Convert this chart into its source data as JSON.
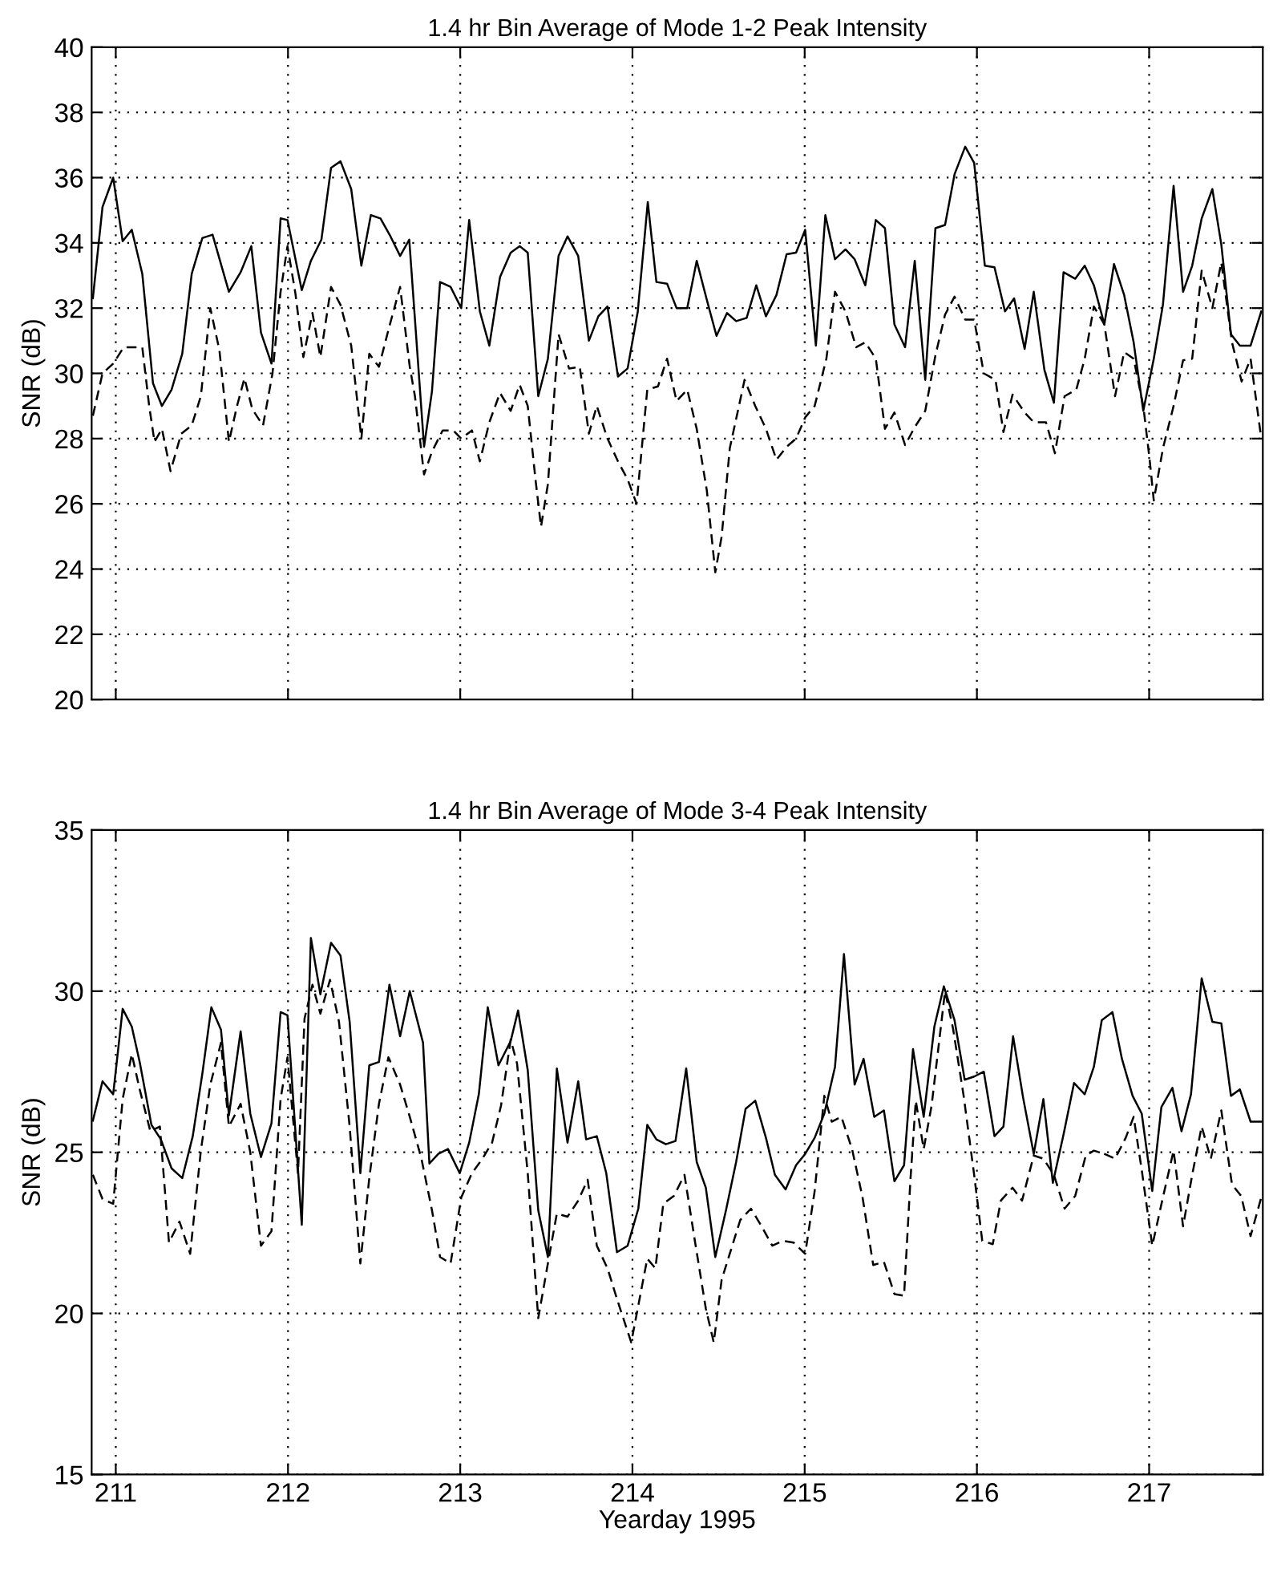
{
  "chart_data": [
    {
      "type": "line",
      "title": "1.4 hr Bin Average of Mode 1-2 Peak Intensity",
      "ylabel": "SNR (dB)",
      "xlim": [
        210.86,
        217.66
      ],
      "xticks": [
        211,
        212,
        213,
        214,
        215,
        216,
        217
      ],
      "ylim": [
        20,
        40
      ],
      "yticks": [
        20,
        22,
        24,
        26,
        28,
        30,
        32,
        34,
        36,
        38,
        40
      ],
      "grid": true,
      "tick_labels": "y",
      "marker": "none",
      "series": [
        {
          "color": "#000000",
          "line_style": "solid",
          "x": [
            210.867,
            210.923,
            210.985,
            211.04,
            211.093,
            211.154,
            211.216,
            211.268,
            211.324,
            211.386,
            211.441,
            211.503,
            211.562,
            211.657,
            211.725,
            211.787,
            211.843,
            211.904,
            211.957,
            211.997,
            212.08,
            212.133,
            212.194,
            212.25,
            212.305,
            212.367,
            212.426,
            212.481,
            212.537,
            212.595,
            212.651,
            212.704,
            212.79,
            212.836,
            212.883,
            212.944,
            213.006,
            213.052,
            213.114,
            213.169,
            213.231,
            213.293,
            213.345,
            213.392,
            213.453,
            213.509,
            213.571,
            213.623,
            213.685,
            213.747,
            213.802,
            213.855,
            213.916,
            213.972,
            214.031,
            214.089,
            214.139,
            214.201,
            214.256,
            214.318,
            214.373,
            214.432,
            214.488,
            214.549,
            214.602,
            214.663,
            214.719,
            214.775,
            214.836,
            214.895,
            214.95,
            215.003,
            215.065,
            215.12,
            215.176,
            215.237,
            215.29,
            215.352,
            215.413,
            215.466,
            215.521,
            215.583,
            215.639,
            215.7,
            215.759,
            215.815,
            215.87,
            215.932,
            215.984,
            216.046,
            216.102,
            216.163,
            216.216,
            216.277,
            216.33,
            216.392,
            216.447,
            216.503,
            216.571,
            216.626,
            216.679,
            216.74,
            216.796,
            216.855,
            216.91,
            216.966,
            217.027,
            217.08,
            217.142,
            217.197,
            217.25,
            217.305,
            217.367,
            217.419,
            217.475,
            217.527,
            217.589,
            217.651
          ],
          "values": [
            32.3,
            35.1,
            36.0,
            34.05,
            34.4,
            33.05,
            29.7,
            29.0,
            29.5,
            30.6,
            33.05,
            34.15,
            34.25,
            32.5,
            33.1,
            33.9,
            31.25,
            30.3,
            34.75,
            34.7,
            32.55,
            33.45,
            34.1,
            36.3,
            36.5,
            35.65,
            33.3,
            34.85,
            34.75,
            34.2,
            33.6,
            34.1,
            27.75,
            29.45,
            32.8,
            32.65,
            32.0,
            34.7,
            31.9,
            30.85,
            32.95,
            33.7,
            33.9,
            33.7,
            29.3,
            30.45,
            33.6,
            34.2,
            33.6,
            31.0,
            31.75,
            32.05,
            29.9,
            30.15,
            31.9,
            35.25,
            32.8,
            32.75,
            32.0,
            32.0,
            33.45,
            32.25,
            31.15,
            31.85,
            31.6,
            31.7,
            32.7,
            31.75,
            32.4,
            33.65,
            33.7,
            34.4,
            30.85,
            34.85,
            33.5,
            33.8,
            33.5,
            32.7,
            34.7,
            34.45,
            31.5,
            30.8,
            33.45,
            29.8,
            34.45,
            34.55,
            36.1,
            36.95,
            36.45,
            33.3,
            33.25,
            31.9,
            32.3,
            30.75,
            32.5,
            30.1,
            29.1,
            33.1,
            32.9,
            33.3,
            32.7,
            31.5,
            33.35,
            32.4,
            30.95,
            28.85,
            30.45,
            32.1,
            35.75,
            32.5,
            33.3,
            34.75,
            35.65,
            33.95,
            31.2,
            30.85,
            30.85,
            31.9
          ]
        },
        {
          "color": "#000000",
          "line_style": "dashed",
          "x": [
            210.867,
            210.923,
            210.985,
            211.046,
            211.108,
            211.154,
            211.194,
            211.225,
            211.268,
            211.318,
            211.38,
            211.441,
            211.494,
            211.549,
            211.602,
            211.657,
            211.704,
            211.747,
            211.793,
            211.855,
            211.91,
            211.957,
            211.997,
            212.043,
            212.089,
            212.142,
            212.188,
            212.25,
            212.305,
            212.367,
            212.426,
            212.472,
            212.528,
            212.589,
            212.651,
            212.707,
            212.737,
            212.79,
            212.836,
            212.898,
            212.96,
            213.006,
            213.068,
            213.114,
            213.169,
            213.231,
            213.293,
            213.345,
            213.392,
            213.438,
            213.469,
            213.509,
            213.571,
            213.632,
            213.694,
            213.747,
            213.793,
            213.855,
            213.916,
            213.972,
            214.024,
            214.086,
            214.148,
            214.201,
            214.256,
            214.318,
            214.373,
            214.432,
            214.481,
            214.518,
            214.565,
            214.651,
            214.713,
            214.775,
            214.836,
            214.895,
            214.95,
            215.003,
            215.058,
            215.126,
            215.176,
            215.237,
            215.299,
            215.352,
            215.413,
            215.466,
            215.521,
            215.583,
            215.639,
            215.7,
            215.759,
            215.815,
            215.87,
            215.932,
            215.984,
            216.04,
            216.108,
            216.154,
            216.207,
            216.277,
            216.33,
            216.401,
            216.453,
            216.509,
            216.577,
            216.626,
            216.679,
            216.74,
            216.802,
            216.855,
            216.91,
            216.966,
            217.003,
            217.027,
            217.08,
            217.142,
            217.197,
            217.25,
            217.305,
            217.367,
            217.419,
            217.481,
            217.537,
            217.589,
            217.651
          ],
          "values": [
            28.7,
            30.0,
            30.3,
            30.8,
            30.8,
            30.8,
            29.0,
            27.9,
            28.3,
            27.0,
            28.15,
            28.4,
            29.3,
            32.0,
            30.7,
            27.9,
            29.0,
            29.85,
            28.9,
            28.4,
            30.0,
            32.5,
            33.9,
            32.45,
            30.5,
            31.85,
            30.5,
            32.65,
            32.1,
            30.85,
            28.0,
            30.6,
            30.2,
            31.45,
            32.65,
            30.2,
            29.3,
            26.9,
            27.6,
            28.25,
            28.25,
            28.0,
            28.25,
            27.3,
            28.5,
            29.4,
            28.85,
            29.65,
            29.0,
            26.7,
            25.3,
            26.6,
            31.2,
            30.15,
            30.2,
            28.15,
            29.0,
            28.0,
            27.3,
            26.75,
            26.0,
            29.5,
            29.6,
            30.45,
            29.15,
            29.5,
            28.3,
            26.4,
            23.9,
            25.0,
            27.7,
            29.8,
            29.0,
            28.3,
            27.35,
            27.75,
            28.0,
            28.65,
            29.0,
            30.45,
            32.5,
            31.9,
            30.8,
            30.95,
            30.45,
            28.3,
            28.8,
            27.8,
            28.35,
            28.85,
            30.55,
            31.8,
            32.35,
            31.65,
            31.65,
            30.0,
            29.8,
            28.2,
            29.35,
            28.8,
            28.5,
            28.5,
            27.55,
            29.3,
            29.5,
            30.45,
            32.05,
            31.5,
            29.3,
            30.65,
            30.45,
            29.0,
            27.35,
            26.1,
            27.7,
            29.0,
            30.4,
            30.45,
            33.15,
            32.0,
            33.4,
            30.95,
            29.75,
            30.45,
            28.0
          ]
        }
      ]
    },
    {
      "type": "line",
      "title": "1.4 hr Bin Average of Mode 3-4 Peak Intensity",
      "xlabel": "Yearday 1995",
      "ylabel": "SNR (dB)",
      "xlim": [
        210.86,
        217.66
      ],
      "xticks": [
        211,
        212,
        213,
        214,
        215,
        216,
        217
      ],
      "ylim": [
        15,
        35
      ],
      "yticks": [
        15,
        20,
        25,
        30,
        35
      ],
      "grid": true,
      "marker": "none",
      "series": [
        {
          "color": "#000000",
          "line_style": "solid",
          "x": [
            210.867,
            210.923,
            210.985,
            211.04,
            211.093,
            211.139,
            211.207,
            211.262,
            211.324,
            211.386,
            211.447,
            211.503,
            211.555,
            211.611,
            211.657,
            211.725,
            211.781,
            211.843,
            211.904,
            211.957,
            211.997,
            212.08,
            212.133,
            212.188,
            212.25,
            212.305,
            212.358,
            212.42,
            212.472,
            212.528,
            212.589,
            212.651,
            212.707,
            212.784,
            212.821,
            212.873,
            212.929,
            212.997,
            213.052,
            213.108,
            213.16,
            213.222,
            213.293,
            213.336,
            213.392,
            213.453,
            213.509,
            213.561,
            213.623,
            213.685,
            213.731,
            213.793,
            213.848,
            213.91,
            213.972,
            214.034,
            214.086,
            214.139,
            214.194,
            214.25,
            214.312,
            214.373,
            214.426,
            214.481,
            214.543,
            214.602,
            214.657,
            214.713,
            214.775,
            214.827,
            214.889,
            214.95,
            215.003,
            215.058,
            215.114,
            215.176,
            215.228,
            215.29,
            215.342,
            215.404,
            215.46,
            215.521,
            215.577,
            215.629,
            215.691,
            215.753,
            215.808,
            215.87,
            215.929,
            215.984,
            216.04,
            216.102,
            216.154,
            216.21,
            216.268,
            216.33,
            216.386,
            216.441,
            216.503,
            216.564,
            216.626,
            216.679,
            216.725,
            216.787,
            216.842,
            216.904,
            216.957,
            217.018,
            217.071,
            217.135,
            217.188,
            217.243,
            217.305,
            217.367,
            217.419,
            217.475,
            217.527,
            217.589,
            217.651
          ],
          "values": [
            25.98,
            27.2,
            26.8,
            29.45,
            28.9,
            27.8,
            25.85,
            25.4,
            24.5,
            24.2,
            25.5,
            27.45,
            29.5,
            28.8,
            26.15,
            28.75,
            26.2,
            24.85,
            25.9,
            29.35,
            29.25,
            22.75,
            31.65,
            29.9,
            31.5,
            31.1,
            29.05,
            24.35,
            27.7,
            27.8,
            30.2,
            28.6,
            30.0,
            28.4,
            24.65,
            24.95,
            25.1,
            24.35,
            25.3,
            26.8,
            29.5,
            27.7,
            28.45,
            29.4,
            27.55,
            23.2,
            21.75,
            27.6,
            25.3,
            27.2,
            25.4,
            25.5,
            24.35,
            21.9,
            22.1,
            23.25,
            25.85,
            25.4,
            25.25,
            25.35,
            27.6,
            24.7,
            23.9,
            21.75,
            23.2,
            24.7,
            26.35,
            26.6,
            25.45,
            24.3,
            23.85,
            24.6,
            24.95,
            25.45,
            26.2,
            27.65,
            31.15,
            27.1,
            27.9,
            26.1,
            26.3,
            24.1,
            24.6,
            28.2,
            26.1,
            28.9,
            30.15,
            29.1,
            27.25,
            27.35,
            27.5,
            25.5,
            25.8,
            28.6,
            26.7,
            24.95,
            26.65,
            24.05,
            25.55,
            27.15,
            26.8,
            27.65,
            29.1,
            29.35,
            27.9,
            26.75,
            26.2,
            23.8,
            26.4,
            27.0,
            25.65,
            26.8,
            30.4,
            29.05,
            29.0,
            26.75,
            26.95,
            25.95,
            25.95
          ]
        },
        {
          "color": "#000000",
          "line_style": "dashed",
          "x": [
            210.867,
            210.923,
            210.985,
            211.04,
            211.093,
            211.139,
            211.201,
            211.256,
            211.309,
            211.37,
            211.432,
            211.494,
            211.549,
            211.611,
            211.657,
            211.725,
            211.781,
            211.843,
            211.904,
            211.957,
            211.997,
            212.058,
            212.096,
            212.142,
            212.188,
            212.244,
            212.296,
            212.358,
            212.42,
            212.472,
            212.528,
            212.583,
            212.651,
            212.707,
            212.775,
            212.836,
            212.883,
            212.944,
            213.006,
            213.068,
            213.129,
            213.185,
            213.237,
            213.293,
            213.33,
            213.392,
            213.453,
            213.509,
            213.561,
            213.623,
            213.685,
            213.74,
            213.793,
            213.855,
            213.916,
            213.993,
            214.086,
            214.133,
            214.179,
            214.241,
            214.302,
            214.364,
            214.426,
            214.472,
            214.518,
            214.565,
            214.626,
            214.688,
            214.75,
            214.812,
            214.873,
            214.935,
            215.003,
            215.058,
            215.114,
            215.157,
            215.213,
            215.275,
            215.336,
            215.398,
            215.46,
            215.521,
            215.577,
            215.614,
            215.645,
            215.691,
            215.737,
            215.815,
            215.861,
            215.923,
            215.984,
            216.031,
            216.092,
            216.139,
            216.207,
            216.262,
            216.33,
            216.386,
            216.447,
            216.509,
            216.571,
            216.632,
            216.679,
            216.74,
            216.802,
            216.864,
            216.91,
            216.957,
            217.018,
            217.08,
            217.142,
            217.197,
            217.25,
            217.305,
            217.358,
            217.419,
            217.481,
            217.534,
            217.589,
            217.651
          ],
          "values": [
            24.3,
            23.55,
            23.4,
            26.65,
            28.05,
            26.95,
            25.65,
            25.8,
            22.2,
            22.85,
            21.85,
            25.05,
            27.1,
            28.4,
            25.8,
            26.5,
            25.0,
            22.1,
            22.55,
            26.65,
            27.95,
            24.35,
            29.15,
            30.2,
            29.3,
            30.35,
            29.05,
            25.8,
            21.55,
            24.2,
            26.5,
            27.95,
            27.1,
            26.1,
            24.8,
            23.2,
            21.75,
            21.55,
            23.6,
            24.35,
            24.8,
            25.3,
            26.45,
            28.5,
            27.75,
            24.35,
            19.85,
            21.55,
            23.1,
            23.0,
            23.5,
            24.15,
            22.1,
            21.4,
            20.35,
            19.1,
            21.7,
            21.4,
            23.4,
            23.65,
            24.3,
            22.2,
            20.15,
            19.1,
            21.05,
            21.85,
            22.9,
            23.25,
            22.7,
            22.1,
            22.25,
            22.2,
            21.85,
            23.8,
            26.75,
            25.95,
            26.1,
            25.1,
            23.6,
            21.5,
            21.6,
            20.6,
            20.55,
            24.15,
            26.6,
            25.1,
            26.45,
            30.0,
            28.85,
            26.75,
            24.3,
            22.25,
            22.15,
            23.5,
            23.9,
            23.5,
            24.9,
            24.8,
            24.3,
            23.25,
            23.65,
            24.9,
            25.05,
            24.95,
            24.8,
            25.45,
            26.1,
            24.45,
            22.1,
            23.6,
            25.05,
            22.7,
            24.3,
            25.8,
            24.8,
            26.3,
            24.0,
            23.65,
            22.4,
            23.6
          ]
        }
      ]
    }
  ]
}
